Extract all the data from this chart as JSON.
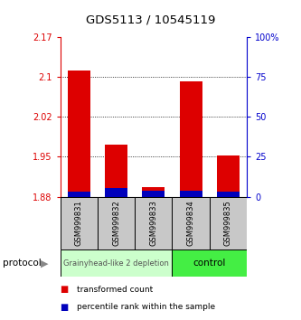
{
  "title": "GDS5113 / 10545119",
  "samples": [
    "GSM999831",
    "GSM999832",
    "GSM999833",
    "GSM999834",
    "GSM999835"
  ],
  "red_values": [
    2.112,
    1.972,
    1.893,
    2.092,
    1.953
  ],
  "blue_pct": [
    3.5,
    5.5,
    4.0,
    4.0,
    3.5
  ],
  "ylim_left": [
    1.875,
    2.175
  ],
  "yticks_left": [
    1.875,
    1.95,
    2.025,
    2.1,
    2.175
  ],
  "ylim_right": [
    0,
    100
  ],
  "yticks_right": [
    0,
    25,
    50,
    75,
    100
  ],
  "ytick_labels_right": [
    "0",
    "25",
    "50",
    "75",
    "100%"
  ],
  "left_color": "#dd0000",
  "right_color": "#0000cc",
  "bar_red_color": "#dd0000",
  "bar_blue_color": "#0000bb",
  "group1_samples": [
    0,
    1,
    2
  ],
  "group2_samples": [
    3,
    4
  ],
  "group1_label": "Grainyhead-like 2 depletion",
  "group2_label": "control",
  "group1_color": "#ccffcc",
  "group2_color": "#44ee44",
  "protocol_label": "protocol",
  "legend_red": "transformed count",
  "legend_blue": "percentile rank within the sample",
  "bar_width": 0.6,
  "baseline": 1.875,
  "bg_color": "#ffffff"
}
